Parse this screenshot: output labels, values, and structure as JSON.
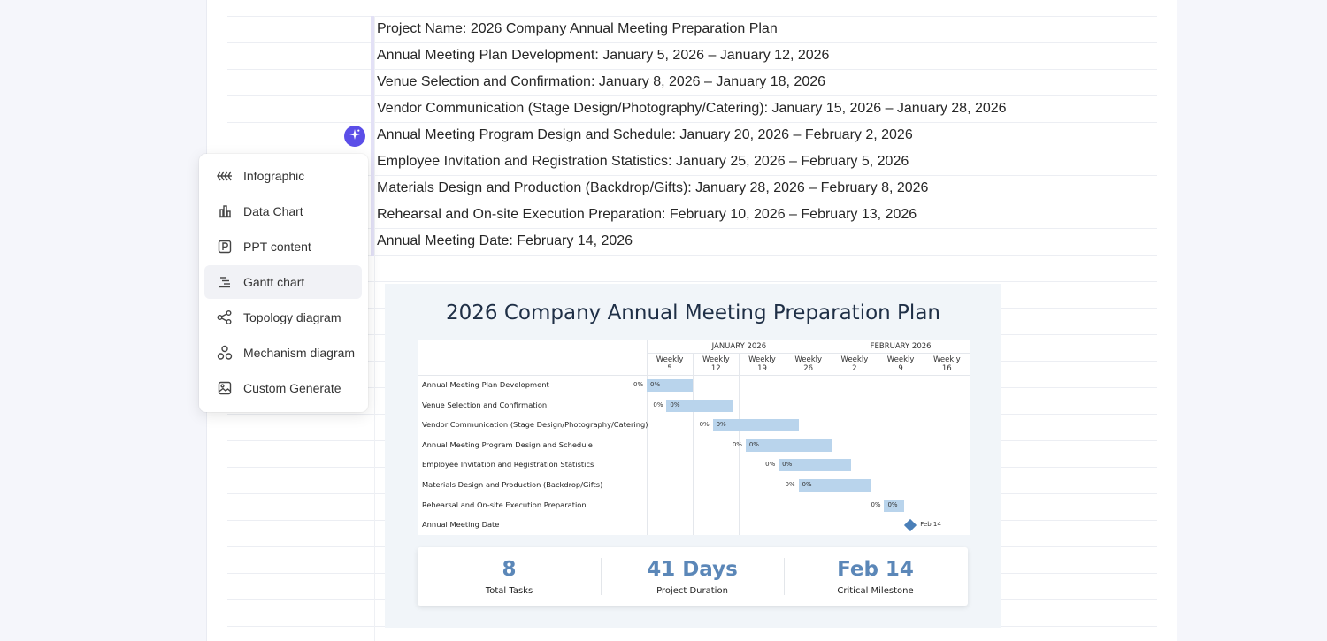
{
  "document": {
    "rows": [
      "Project Name: 2026 Company Annual Meeting Preparation Plan",
      "Annual Meeting Plan Development: January 5, 2026 – January 12, 2026",
      "Venue Selection and Confirmation: January 8, 2026 – January 18, 2026",
      "Vendor Communication (Stage Design/Photography/Catering): January 15, 2026 – January 28, 2026",
      "Annual Meeting Program Design and Schedule: January 20, 2026 – February 2, 2026",
      "Employee Invitation and Registration Statistics: January 25, 2026 – February 5, 2026",
      "Materials Design and Production (Backdrop/Gifts): January 28, 2026 – February 8, 2026",
      "Rehearsal and On-site Execution Preparation: February 10, 2026 – February 13, 2026",
      "Annual Meeting Date: February 14, 2026"
    ]
  },
  "ai_button": {
    "icon": "sparkle-icon",
    "color": "#5b4ee8"
  },
  "menu": {
    "items": [
      {
        "label": "Infographic",
        "icon": "infographic-icon"
      },
      {
        "label": "Data Chart",
        "icon": "bar-chart-icon"
      },
      {
        "label": "PPT content",
        "icon": "ppt-icon"
      },
      {
        "label": "Gantt chart",
        "icon": "gantt-icon",
        "active": true
      },
      {
        "label": "Topology diagram",
        "icon": "topology-icon"
      },
      {
        "label": "Mechanism diagram",
        "icon": "mechanism-icon"
      },
      {
        "label": "Custom Generate",
        "icon": "image-icon"
      }
    ]
  },
  "gantt": {
    "title": "2026 Company Annual Meeting Preparation Plan",
    "months": [
      "JANUARY 2026",
      "FEBRUARY 2026"
    ],
    "weeks": [
      {
        "l1": "Weekly",
        "l2": "5"
      },
      {
        "l1": "Weekly",
        "l2": "12"
      },
      {
        "l1": "Weekly",
        "l2": "19"
      },
      {
        "l1": "Weekly",
        "l2": "26"
      },
      {
        "l1": "Weekly",
        "l2": "2"
      },
      {
        "l1": "Weekly",
        "l2": "9"
      },
      {
        "l1": "Weekly",
        "l2": "16"
      }
    ],
    "tasks": [
      {
        "name": "Annual Meeting Plan Development",
        "start": "2026-01-05",
        "end": "2026-01-12",
        "progress": "0%"
      },
      {
        "name": "Venue Selection and Confirmation",
        "start": "2026-01-08",
        "end": "2026-01-18",
        "progress": "0%"
      },
      {
        "name": "Vendor Communication (Stage Design/Photography/Catering)",
        "start": "2026-01-15",
        "end": "2026-01-28",
        "progress": "0%"
      },
      {
        "name": "Annual Meeting Program Design and Schedule",
        "start": "2026-01-20",
        "end": "2026-02-02",
        "progress": "0%"
      },
      {
        "name": "Employee Invitation and Registration Statistics",
        "start": "2026-01-25",
        "end": "2026-02-05",
        "progress": "0%"
      },
      {
        "name": "Materials Design and Production (Backdrop/Gifts)",
        "start": "2026-01-28",
        "end": "2026-02-08",
        "progress": "0%"
      },
      {
        "name": "Rehearsal and On-site Execution Preparation",
        "start": "2026-02-10",
        "end": "2026-02-13",
        "progress": "0%"
      },
      {
        "name": "Annual Meeting Date",
        "milestone": "2026-02-14",
        "label": "Feb 14"
      }
    ],
    "stats": [
      {
        "value": "8",
        "label": "Total Tasks"
      },
      {
        "value": "41 Days",
        "label": "Project Duration"
      },
      {
        "value": "Feb 14",
        "label": "Critical Milestone"
      }
    ],
    "colors": {
      "bar": "#b9d4ec",
      "milestone": "#4a7fb8",
      "stat_value": "#5b87b8"
    }
  }
}
